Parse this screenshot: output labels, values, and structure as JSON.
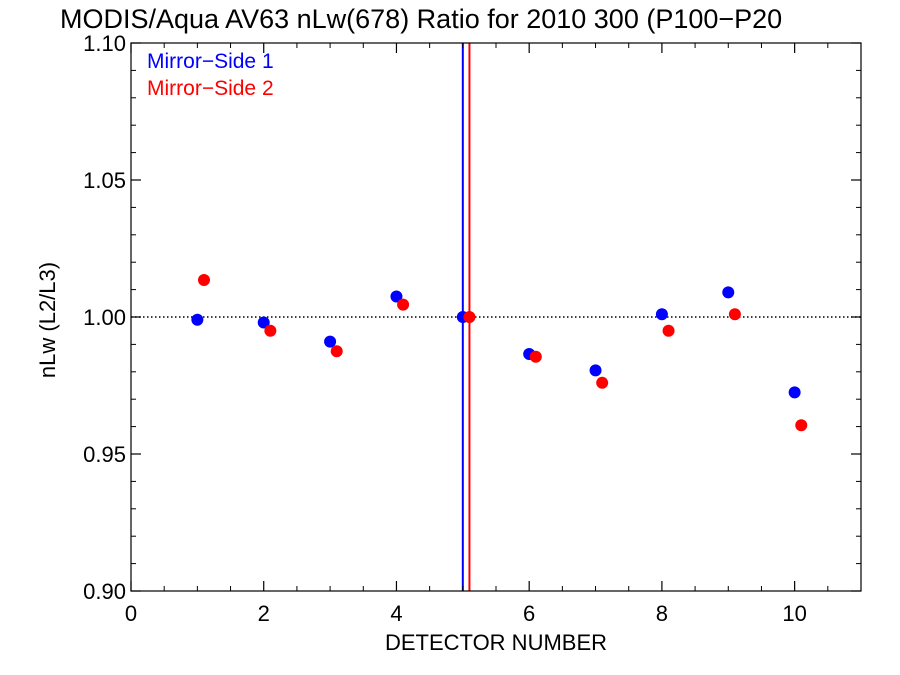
{
  "chart_data": {
    "type": "scatter",
    "title": "MODIS/Aqua AV63 nLw(678) Ratio for 2010 300 (P100−P20",
    "xlabel": "DETECTOR NUMBER",
    "ylabel": "nLw (L2/L3)",
    "xlim": [
      0,
      11
    ],
    "ylim": [
      0.9,
      1.1
    ],
    "x_ticks": [
      0,
      2,
      4,
      6,
      8,
      10
    ],
    "x_tick_labels": [
      "0",
      "2",
      "4",
      "6",
      "8",
      "10"
    ],
    "y_ticks": [
      0.9,
      0.95,
      1.0,
      1.05,
      1.1
    ],
    "y_tick_labels": [
      "0.90",
      "0.95",
      "1.00",
      "1.05",
      "1.10"
    ],
    "reference_line": {
      "y": 1.0,
      "style": "dotted"
    },
    "vertical_lines": [
      {
        "x": 5.0,
        "color": "#0000ff"
      },
      {
        "x": 5.1,
        "color": "#ff0000"
      }
    ],
    "legend_position": "top-left",
    "series": [
      {
        "name": "Mirror−Side 1",
        "color": "#0000ff",
        "x": [
          1,
          2,
          3,
          4,
          5,
          6,
          7,
          8,
          9,
          10
        ],
        "y": [
          0.999,
          0.998,
          0.991,
          1.0075,
          1.0,
          0.9865,
          0.9805,
          1.001,
          1.009,
          0.9725
        ]
      },
      {
        "name": "Mirror−Side 2",
        "color": "#ff0000",
        "x": [
          1.1,
          2.1,
          3.1,
          4.1,
          5.1,
          6.1,
          7.1,
          8.1,
          9.1,
          10.1
        ],
        "y": [
          1.0135,
          0.995,
          0.9875,
          1.0045,
          1.0,
          0.9855,
          0.976,
          0.995,
          1.001,
          0.9605
        ]
      }
    ]
  }
}
